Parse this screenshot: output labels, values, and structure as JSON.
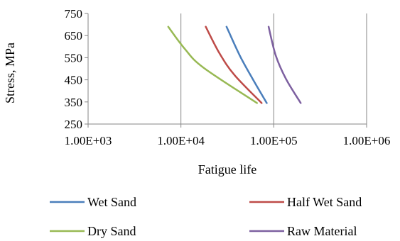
{
  "chart_data": {
    "type": "line",
    "title": "",
    "xlabel": "Fatigue life",
    "ylabel": "Stress, MPa",
    "x_scale": "log",
    "xlim": [
      1000,
      1000000
    ],
    "ylim": [
      250,
      750
    ],
    "x_ticks": [
      1000,
      10000,
      100000,
      1000000
    ],
    "x_tick_labels": [
      "1.00E+03",
      "1.00E+04",
      "1.00E+05",
      "1.00E+06"
    ],
    "y_ticks": [
      250,
      350,
      450,
      550,
      650,
      750
    ],
    "y_tick_labels": [
      "250",
      "350",
      "450",
      "550",
      "650",
      "750"
    ],
    "grid": "vertical",
    "legend_position": "bottom",
    "series": [
      {
        "name": "Wet Sand",
        "color": "#4A7EBB",
        "points": [
          [
            31000,
            690
          ],
          [
            43000,
            560
          ],
          [
            60000,
            450
          ],
          [
            84000,
            345
          ]
        ]
      },
      {
        "name": "Half Wet Sand",
        "color": "#BE4B48",
        "points": [
          [
            18500,
            690
          ],
          [
            26000,
            570
          ],
          [
            38000,
            470
          ],
          [
            74000,
            345
          ]
        ]
      },
      {
        "name": "Dry Sand",
        "color": "#98B954",
        "points": [
          [
            7300,
            690
          ],
          [
            11000,
            590
          ],
          [
            17500,
            505
          ],
          [
            66000,
            345
          ]
        ]
      },
      {
        "name": "Raw Material",
        "color": "#7D60A0",
        "points": [
          [
            88000,
            690
          ],
          [
            105000,
            560
          ],
          [
            135000,
            455
          ],
          [
            195000,
            345
          ]
        ]
      }
    ]
  }
}
